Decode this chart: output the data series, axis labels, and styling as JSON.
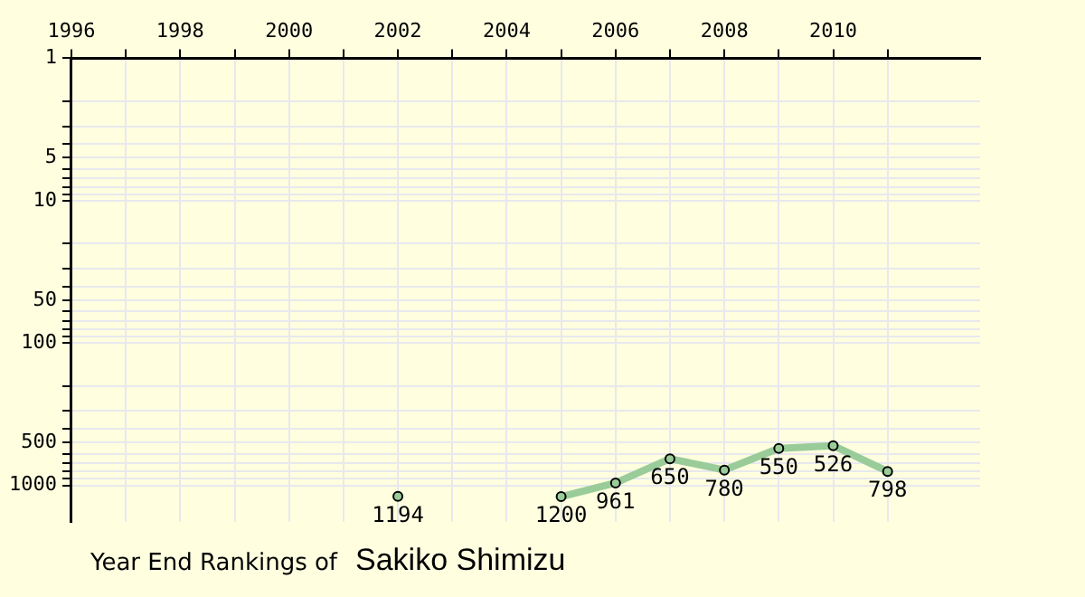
{
  "chart_data": {
    "type": "line",
    "title": "Year End Rankings of",
    "subtitle": "Sakiko Shimizu",
    "x": [
      2002,
      2003,
      2004,
      2005,
      2006,
      2007,
      2008,
      2009,
      2010,
      2011
    ],
    "series": [
      {
        "color": "#99cc99",
        "values": [
          1194,
          null,
          null,
          1200,
          961,
          650,
          780,
          550,
          526,
          798
        ]
      }
    ],
    "xlim": [
      1996,
      2012.7
    ],
    "xticks": [
      1996,
      {
        "value": 1997,
        "label": null
      },
      1998,
      {
        "value": 1999,
        "label": null
      },
      2000,
      {
        "value": 2001,
        "label": null
      },
      2002,
      {
        "value": 2003,
        "label": null
      },
      2004,
      {
        "value": 2005,
        "label": null
      },
      2006,
      {
        "value": 2007,
        "label": null
      },
      2008,
      {
        "value": 2009,
        "label": null
      },
      2010,
      {
        "value": 2011,
        "label": null
      }
    ],
    "ylim": [
      1800,
      1
    ],
    "log": true,
    "yticks": [
      1,
      {
        "value": 2,
        "label": null
      },
      {
        "value": 3,
        "label": null
      },
      {
        "value": 4,
        "label": null
      },
      5,
      {
        "value": 6,
        "label": null
      },
      {
        "value": 7,
        "label": null
      },
      {
        "value": 8,
        "label": null
      },
      {
        "value": 9,
        "label": null
      },
      10,
      {
        "value": 20,
        "label": null
      },
      {
        "value": 30,
        "label": null
      },
      {
        "value": 40,
        "label": null
      },
      50,
      {
        "value": 60,
        "label": null
      },
      {
        "value": 70,
        "label": null
      },
      {
        "value": 80,
        "label": null
      },
      {
        "value": 90,
        "label": null
      },
      100,
      {
        "value": 200,
        "label": null
      },
      {
        "value": 300,
        "label": null
      },
      {
        "value": 400,
        "label": null
      },
      500,
      {
        "value": 600,
        "label": null
      },
      {
        "value": 700,
        "label": null
      },
      {
        "value": 800,
        "label": null
      },
      {
        "value": 900,
        "label": null
      },
      1000
    ],
    "grid": true,
    "legend": false,
    "marker": "circle",
    "line_style": "solid",
    "data_labels": true
  }
}
